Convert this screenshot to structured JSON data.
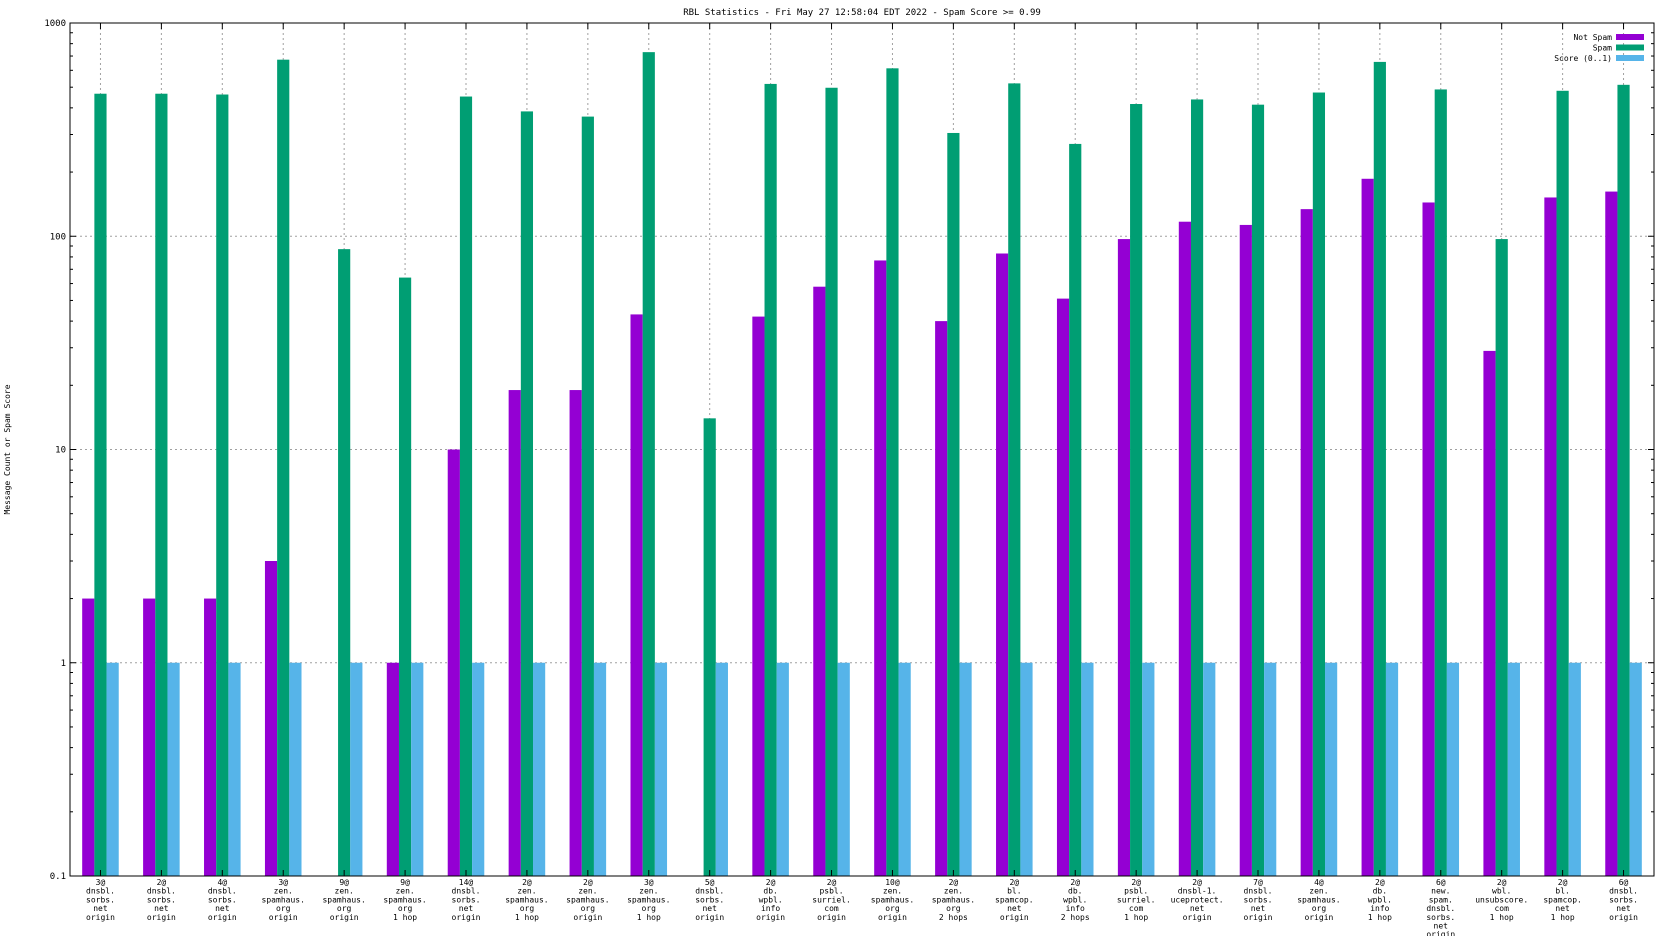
{
  "chart_data": {
    "type": "bar",
    "title": "RBL Statistics - Fri May 27 12:58:04 EDT 2022 - Spam Score >= 0.99",
    "xlabel": "",
    "ylabel": "Message Count or Spam Score",
    "yscale": "log",
    "ylim": [
      0.1,
      1000
    ],
    "yticks": [
      "0.1",
      "1",
      "10",
      "100",
      "1000"
    ],
    "grid": true,
    "legend_position": "top-right",
    "categories": [
      [
        "3@",
        "dnsbl.",
        "sorbs.",
        "net",
        "origin"
      ],
      [
        "2@",
        "dnsbl.",
        "sorbs.",
        "net",
        "origin"
      ],
      [
        "4@",
        "dnsbl.",
        "sorbs.",
        "net",
        "origin"
      ],
      [
        "3@",
        "zen.",
        "spamhaus.",
        "org",
        "origin"
      ],
      [
        "9@",
        "zen.",
        "spamhaus.",
        "org",
        "origin"
      ],
      [
        "9@",
        "zen.",
        "spamhaus.",
        "org",
        "1 hop"
      ],
      [
        "14@",
        "dnsbl.",
        "sorbs.",
        "net",
        "origin"
      ],
      [
        "2@",
        "zen.",
        "spamhaus.",
        "org",
        "1 hop"
      ],
      [
        "2@",
        "zen.",
        "spamhaus.",
        "org",
        "origin"
      ],
      [
        "3@",
        "zen.",
        "spamhaus.",
        "org",
        "1 hop"
      ],
      [
        "5@",
        "dnsbl.",
        "sorbs.",
        "net",
        "origin"
      ],
      [
        "2@",
        "db.",
        "wpbl.",
        "info",
        "origin"
      ],
      [
        "2@",
        "psbl.",
        "surriel.",
        "com",
        "origin"
      ],
      [
        "10@",
        "zen.",
        "spamhaus.",
        "org",
        "origin"
      ],
      [
        "2@",
        "zen.",
        "spamhaus.",
        "org",
        "2 hops"
      ],
      [
        "2@",
        "bl.",
        "spamcop.",
        "net",
        "origin"
      ],
      [
        "2@",
        "db.",
        "wpbl.",
        "info",
        "2 hops"
      ],
      [
        "2@",
        "psbl.",
        "surriel.",
        "com",
        "1 hop"
      ],
      [
        "2@",
        "dnsbl-1.",
        "uceprotect.",
        "net",
        "origin"
      ],
      [
        "7@",
        "dnsbl.",
        "sorbs.",
        "net",
        "origin"
      ],
      [
        "4@",
        "zen.",
        "spamhaus.",
        "org",
        "origin"
      ],
      [
        "2@",
        "db.",
        "wpbl.",
        "info",
        "1 hop"
      ],
      [
        "6@",
        "new.",
        "spam.",
        "dnsbl.",
        "sorbs.",
        "net",
        "origin"
      ],
      [
        "2@",
        "wbl.",
        "unsubscore.",
        "com",
        "1 hop"
      ],
      [
        "2@",
        "bl.",
        "spamcop.",
        "net",
        "1 hop"
      ],
      [
        "6@",
        "dnsbl.",
        "sorbs.",
        "net",
        "origin"
      ]
    ],
    "series": [
      {
        "name": "Not Spam",
        "color": "#9400d3",
        "values": [
          2,
          2,
          2,
          3,
          null,
          1,
          10,
          19,
          19,
          43,
          null,
          42,
          58,
          77,
          40,
          83,
          51,
          97,
          117,
          113,
          134,
          186,
          144,
          29,
          152,
          162
        ]
      },
      {
        "name": "Spam",
        "color": "#009e73",
        "values": [
          466,
          466,
          462,
          673,
          87,
          64,
          452,
          385,
          364,
          730,
          14,
          518,
          497,
          613,
          305,
          521,
          271,
          417,
          438,
          414,
          472,
          657,
          488,
          97,
          481,
          513
        ]
      },
      {
        "name": "Score (0..1)",
        "color": "#56b4e9",
        "values": [
          1,
          1,
          1,
          1,
          1,
          1,
          1,
          1,
          1,
          1,
          1,
          1,
          1,
          1,
          1,
          1,
          1,
          1,
          1,
          1,
          1,
          1,
          1,
          1,
          1,
          1
        ]
      }
    ]
  }
}
